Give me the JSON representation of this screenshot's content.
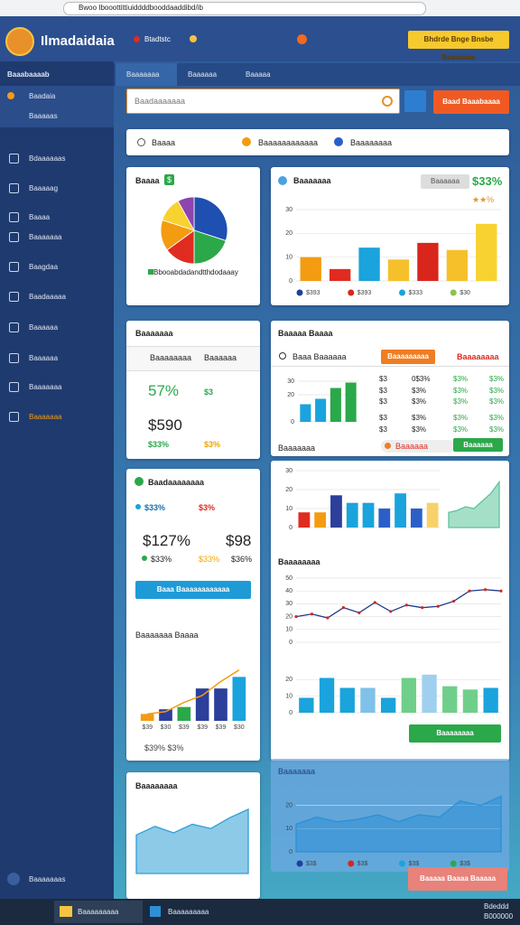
{
  "browser": {
    "url": "Bwoo Ibooottittiuiddddbooddaaddibd/ib"
  },
  "header": {
    "title": "Ilmadaidaia",
    "nav": "Btadtstc",
    "button": "Bhdrde Bnge Bnsbe Boaaaaae"
  },
  "sidebar": {
    "heading": "Baaabaaaab",
    "user": "Baadaia",
    "section": "Baaaaas",
    "items": [
      "Bdaaaaaas",
      "Baaaaag",
      "Baaaa",
      "Baaaaaaa",
      "Baagdaa",
      "Baadaaaaa",
      "Baaaaaa",
      "Baaaaaa",
      "Baaaaaaa",
      "Baaaaaaa"
    ],
    "footer": "Baaaaaaas"
  },
  "tabs": [
    "Baaaaaaa",
    "Baaaaaa",
    "Baaaaa"
  ],
  "search": {
    "placeholder": "Baadaaaaaaa",
    "button": "Baad Baaabaaaa"
  },
  "filters": [
    "Baaaa",
    "Baaaaaaaaaaaa",
    "Baaaaaaaa"
  ],
  "cards": {
    "pie": {
      "title": "Baaaa",
      "badge": "$",
      "legend": "Bbooabdadandtthdodaaay"
    },
    "bars": {
      "title": "Baaaaaaa",
      "button": "Baaaaaa",
      "value": "$33%",
      "rating": "★★%"
    },
    "stats": {
      "title": "Baaaaaaa",
      "tabs": [
        "Baaaaaaaa",
        "Baaaaaa"
      ],
      "big1": "57%",
      "small1": "$3",
      "big2": "$590",
      "small2": "$33%",
      "small3": "$3%"
    },
    "table": {
      "title": "Baaaaa Baaaa",
      "row": "Baaa Baaaaaa",
      "orange": "Baaaaaaaaa",
      "red": "Baaaaaaaa",
      "rows": [
        [
          "$3",
          "0$3%",
          "$3%",
          "$3%"
        ],
        [
          "$3",
          "$3%",
          "$3%",
          "$3%"
        ],
        [
          "$3",
          "$3%",
          "$3%",
          "$3%"
        ],
        [
          "$3",
          "$3%",
          "$3%",
          "$3%"
        ],
        [
          "$3",
          "$3%",
          "$3%",
          "$3%"
        ]
      ],
      "label": "Baaaaaaa",
      "pill": "Baaaaaa",
      "button": "Baaaaaa"
    },
    "summary": {
      "title": "Baadaaaaaaaa",
      "a": "$33%",
      "b": "$3%",
      "big1": "$127%",
      "big2": "$98",
      "c": "$33%",
      "d": "$33%",
      "e": "$36%",
      "button": "Baaa Baaaaaaaaaaaa",
      "subtitle": "Baaaaaaa Baaaa",
      "footer": "$39% $3%"
    },
    "trend": {
      "label": "Baaaaaaaa",
      "button": "Baaaaaaaa"
    },
    "area": {
      "title": "Baaaaaaaa"
    },
    "blue": {
      "title": "Baaaaaaa",
      "button": "Baaaaa Baaaa Baaaaa"
    }
  },
  "taskbar": {
    "apps": [
      "Baaaaaaaaa",
      "Baaaaaaaaa"
    ],
    "time": "Bdeddd",
    "date": "B000000"
  },
  "charts": [
    {
      "type": "pie",
      "values": [
        30,
        20,
        15,
        15,
        12,
        8
      ],
      "colors": [
        "#1f4fb0",
        "#2ba84a",
        "#e02b20",
        "#f39c12",
        "#f7d230",
        "#8e44ad"
      ]
    },
    {
      "type": "bar",
      "values": [
        10,
        5,
        14,
        9,
        16,
        13,
        24
      ],
      "colors": [
        "#f39c12",
        "#e02b20",
        "#1aa3dc",
        "#f5c02a",
        "#d9261c",
        "#f5c02a",
        "#f7d230"
      ],
      "ylim": [
        0,
        30
      ],
      "yticks": [
        0,
        10,
        20,
        30
      ],
      "legend": [
        {
          "name": "$393",
          "color": "#1f3f9a"
        },
        {
          "name": "$393",
          "color": "#d9261c"
        },
        {
          "name": "$333",
          "color": "#1aa3dc"
        },
        {
          "name": "$30",
          "color": "#8bc34a"
        }
      ]
    },
    {
      "type": "bar",
      "values": [
        13,
        17,
        25,
        29
      ],
      "colors": [
        "#1aa3dc",
        "#1aa3dc",
        "#2ba84a",
        "#2ba84a"
      ],
      "ylim": [
        0,
        30
      ],
      "yticks": [
        0,
        20,
        30
      ]
    },
    {
      "type": "bar",
      "values": [
        8,
        8,
        17,
        13,
        13,
        10,
        18,
        10,
        13
      ],
      "colors": [
        "#e02b20",
        "#f39c12",
        "#2b3f9b",
        "#1aa3dc",
        "#1aa3dc",
        "#2b5fc8",
        "#1aa3dc",
        "#2b5fc8",
        "#f7d26a"
      ],
      "ylim": [
        0,
        30
      ],
      "yticks": [
        0,
        10,
        20,
        30
      ]
    },
    {
      "type": "area",
      "values": [
        8,
        9,
        11,
        10,
        14,
        18,
        24
      ],
      "color": "#5cc49a",
      "ylim": [
        0,
        30
      ]
    },
    {
      "type": "line",
      "values": [
        20,
        22,
        19,
        27,
        23,
        31,
        24,
        29,
        27,
        28,
        32,
        40,
        41,
        40
      ],
      "color": "#1e3a8a",
      "ylim": [
        0,
        50
      ],
      "yticks": [
        0,
        10,
        20,
        30,
        40,
        50
      ]
    },
    {
      "type": "bar",
      "values": [
        9,
        21,
        15,
        15,
        9,
        21,
        23,
        16,
        14,
        15
      ],
      "colors": [
        "#1aa3dc",
        "#1aa3dc",
        "#1aa3dc",
        "#7fc1e8",
        "#1aa3dc",
        "#6fcf8a",
        "#9fd0ef",
        "#6fcf8a",
        "#6fcf8a",
        "#1aa3dc"
      ],
      "ylim": [
        0,
        30
      ],
      "yticks": [
        0,
        10,
        20
      ]
    },
    {
      "type": "bar",
      "values": [
        3,
        5,
        6,
        14,
        14,
        19
      ],
      "colors": [
        "#f39c12",
        "#2b3f9b",
        "#2ba84a",
        "#2b3f9b",
        "#2b3f9b",
        "#1aa3dc"
      ],
      "ylim": [
        0,
        25
      ],
      "line": [
        3,
        4,
        8,
        11,
        17,
        22
      ],
      "line_color": "#f39c12",
      "categories": [
        "$39",
        "$30",
        "$39",
        "$39",
        "$39",
        "$30"
      ]
    },
    {
      "type": "area",
      "values": [
        18,
        22,
        19,
        23,
        21,
        26,
        30
      ],
      "color": "#2e9fd5",
      "ylim": [
        0,
        35
      ]
    },
    {
      "type": "area",
      "values": [
        12,
        15,
        13,
        14,
        16,
        13,
        16,
        15,
        22,
        20,
        24
      ],
      "color": "#2d8fd6",
      "ylim": [
        0,
        30
      ],
      "yticks": [
        0,
        10,
        20
      ],
      "legend": [
        {
          "name": "$3$",
          "color": "#1f3f9a"
        },
        {
          "name": "$3$",
          "color": "#d9261c"
        },
        {
          "name": "$3$",
          "color": "#1aa3dc"
        },
        {
          "name": "$3$",
          "color": "#2ba84a"
        }
      ]
    }
  ]
}
